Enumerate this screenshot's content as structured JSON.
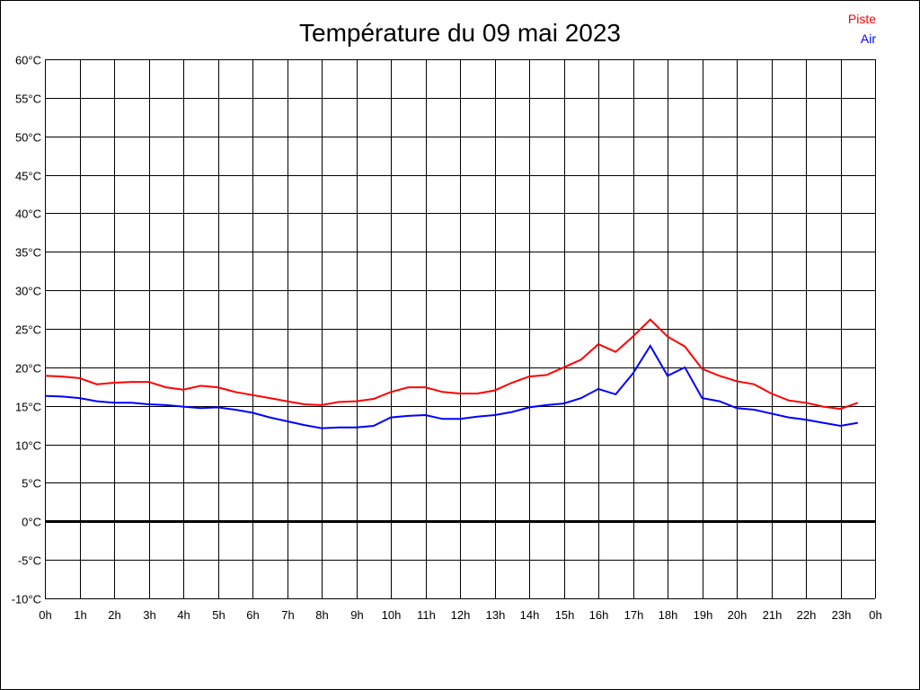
{
  "chart_data": {
    "type": "line",
    "title": "Température du 09 mai 2023",
    "xlabel": "",
    "ylabel": "",
    "ylim": [
      -10,
      60
    ],
    "xlim": [
      0,
      24
    ],
    "grid": true,
    "legend_position": "top-right",
    "y_ticks": [
      "60°C",
      "55°C",
      "50°C",
      "45°C",
      "40°C",
      "35°C",
      "30°C",
      "25°C",
      "20°C",
      "15°C",
      "10°C",
      "5°C",
      "0°C",
      "-5°C",
      "-10°C"
    ],
    "y_tick_values": [
      60,
      55,
      50,
      45,
      40,
      35,
      30,
      25,
      20,
      15,
      10,
      5,
      0,
      -5,
      -10
    ],
    "x_ticks": [
      "0h",
      "1h",
      "2h",
      "3h",
      "4h",
      "5h",
      "6h",
      "7h",
      "8h",
      "9h",
      "10h",
      "11h",
      "12h",
      "13h",
      "14h",
      "15h",
      "16h",
      "17h",
      "18h",
      "19h",
      "20h",
      "21h",
      "22h",
      "23h",
      "0h"
    ],
    "x": [
      0,
      0.5,
      1,
      1.5,
      2,
      2.5,
      3,
      3.5,
      4,
      4.5,
      5,
      5.5,
      6,
      6.5,
      7,
      7.5,
      8,
      8.5,
      9,
      9.5,
      10,
      10.5,
      11,
      11.5,
      12,
      12.5,
      13,
      13.5,
      14,
      14.5,
      15,
      15.5,
      16,
      16.5,
      17,
      17.5,
      18,
      18.5,
      19,
      19.5,
      20,
      20.5,
      21,
      21.5,
      22,
      22.5,
      23,
      23.5
    ],
    "series": [
      {
        "name": "Piste",
        "color": "#ff0000",
        "values": [
          18.9,
          18.8,
          18.6,
          17.8,
          18.0,
          18.1,
          18.1,
          17.4,
          17.1,
          17.6,
          17.4,
          16.8,
          16.4,
          16.0,
          15.6,
          15.2,
          15.1,
          15.5,
          15.6,
          15.9,
          16.8,
          17.4,
          17.4,
          16.8,
          16.6,
          16.6,
          17.0,
          18.0,
          18.8,
          19.0,
          20.0,
          21.0,
          23.0,
          22.0,
          24.0,
          26.2,
          24.0,
          22.7,
          19.8,
          18.9,
          18.2,
          17.8,
          16.6,
          15.7,
          15.4,
          14.9,
          14.6,
          15.4
        ]
      },
      {
        "name": "Air",
        "color": "#0000ff",
        "values": [
          16.3,
          16.2,
          16.0,
          15.6,
          15.4,
          15.4,
          15.2,
          15.1,
          14.9,
          14.7,
          14.8,
          14.5,
          14.1,
          13.5,
          13.0,
          12.5,
          12.1,
          12.2,
          12.2,
          12.4,
          13.5,
          13.7,
          13.8,
          13.3,
          13.3,
          13.6,
          13.8,
          14.2,
          14.8,
          15.1,
          15.3,
          16.0,
          17.2,
          16.5,
          19.2,
          22.8,
          18.9,
          20.0,
          16.0,
          15.6,
          14.7,
          14.5,
          14.0,
          13.5,
          13.2,
          12.8,
          12.4,
          12.8
        ]
      }
    ]
  }
}
